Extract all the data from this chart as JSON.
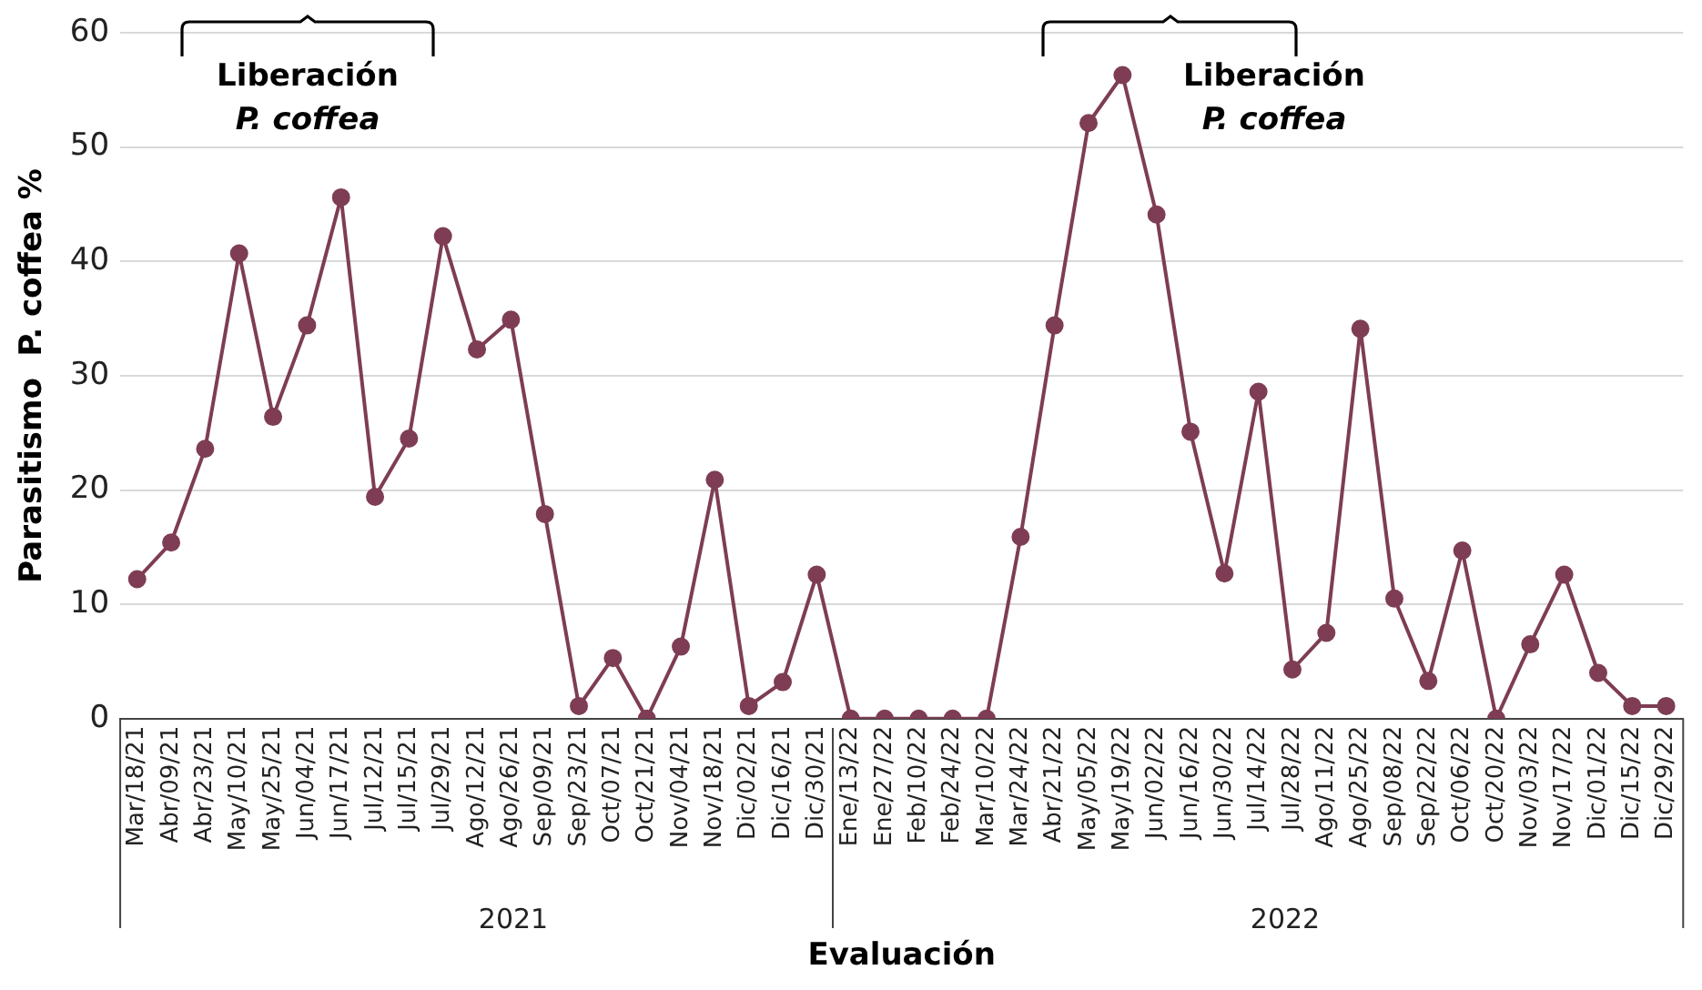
{
  "chart_data": {
    "type": "line",
    "xlabel": "Evaluación",
    "ylabel": "Parasitismo  P. coffea %",
    "categories": [
      "Mar/18/21",
      "Abr/09/21",
      "Abr/23/21",
      "May/10/21",
      "May/25/21",
      "Jun/04/21",
      "Jun/17/21",
      "Jul/12/21",
      "Jul/15/21",
      "Jul/29/21",
      "Ago/12/21",
      "Ago/26/21",
      "Sep/09/21",
      "Sep/23/21",
      "Oct/07/21",
      "Oct/21/21",
      "Nov/04/21",
      "Nov/18/21",
      "Dic/02/21",
      "Dic/16/21",
      "Dic/30/21",
      "Ene/13/22",
      "Ene/27/22",
      "Feb/10/22",
      "Feb/24/22",
      "Mar/10/22",
      "Mar/24/22",
      "Abr/21/22",
      "May/05/22",
      "May/19/22",
      "Jun/02/22",
      "Jun/16/22",
      "Jun/30/22",
      "Jul/14/22",
      "Jul/28/22",
      "Ago/11/22",
      "Ago/25/22",
      "Sep/08/22",
      "Sep/22/22",
      "Oct/06/22",
      "Oct/20/22",
      "Nov/03/22",
      "Nov/17/22",
      "Dic/01/22",
      "Dic/15/22",
      "Dic/29/22"
    ],
    "series": [
      {
        "color": "#7e3d54",
        "values": [
          12.2,
          15.4,
          23.6,
          40.7,
          26.4,
          34.4,
          45.6,
          19.4,
          24.5,
          42.2,
          32.3,
          34.9,
          17.9,
          1.1,
          5.3,
          0,
          6.3,
          20.9,
          1.1,
          3.2,
          12.6,
          0,
          0,
          0,
          0,
          0,
          15.9,
          34.4,
          52.1,
          56.3,
          44.1,
          25.1,
          12.7,
          28.6,
          4.3,
          7.5,
          34.1,
          10.5,
          3.3,
          14.7,
          0,
          6.5,
          12.6,
          4.0,
          1.1,
          1.1
        ]
      }
    ],
    "ylim": [
      0,
      60
    ],
    "yticks": [
      0,
      10,
      20,
      30,
      40,
      50,
      60
    ],
    "grid": "y",
    "marker": "circle",
    "line_style": "solid",
    "annotations": [
      "Liberación P. coffea",
      "Liberación P. coffea",
      "2021",
      "2022"
    ]
  }
}
